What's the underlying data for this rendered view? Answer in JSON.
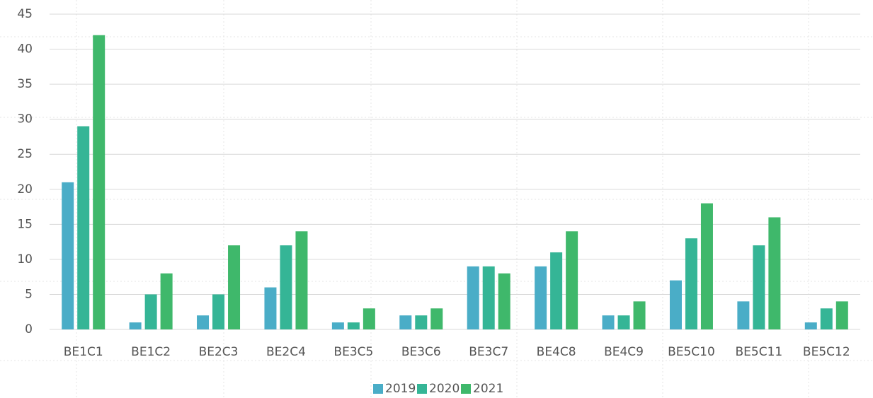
{
  "chart_data": {
    "type": "bar",
    "categories": [
      "BE1C1",
      "BE1C2",
      "BE2C3",
      "BE2C4",
      "BE3C5",
      "BE3C6",
      "BE3C7",
      "BE4C8",
      "BE4C9",
      "BE5C10",
      "BE5C11",
      "BE5C12"
    ],
    "series": [
      {
        "name": "2019",
        "color": "#4aadc7",
        "values": [
          21,
          1,
          2,
          6,
          1,
          2,
          9,
          9,
          2,
          7,
          4,
          1
        ]
      },
      {
        "name": "2020",
        "color": "#35b596",
        "values": [
          29,
          5,
          5,
          12,
          1,
          2,
          9,
          11,
          2,
          13,
          12,
          3
        ]
      },
      {
        "name": "2021",
        "color": "#3fb86b",
        "values": [
          42,
          8,
          12,
          14,
          3,
          3,
          8,
          14,
          4,
          18,
          16,
          4
        ]
      }
    ],
    "ylim": [
      0,
      45
    ],
    "yticks": [
      0,
      5,
      10,
      15,
      20,
      25,
      30,
      35,
      40,
      45
    ],
    "grid": true,
    "legend": "bottom"
  }
}
